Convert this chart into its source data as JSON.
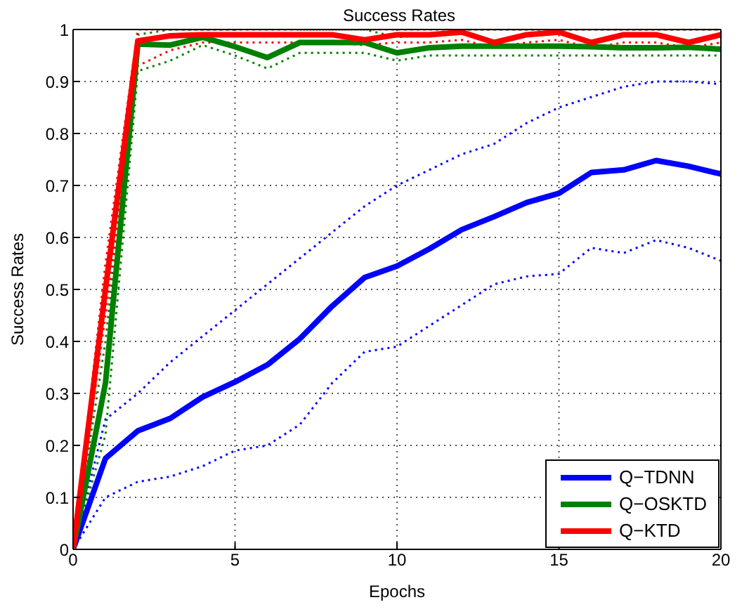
{
  "chart_data": {
    "type": "line",
    "title": "Success Rates",
    "xlabel": "Epochs",
    "ylabel": "Success Rates",
    "x": [
      0,
      1,
      2,
      3,
      4,
      5,
      6,
      7,
      8,
      9,
      10,
      11,
      12,
      13,
      14,
      15,
      16,
      17,
      18,
      19,
      20
    ],
    "xlim": [
      0,
      20
    ],
    "xticks": [
      0,
      5,
      10,
      15,
      20
    ],
    "ylim": [
      0,
      1
    ],
    "yticks": [
      0,
      0.1,
      0.2,
      0.3,
      0.4,
      0.5,
      0.6,
      0.7,
      0.8,
      0.9,
      1
    ],
    "grid": true,
    "legend": "bottom right",
    "marker": "none",
    "series": [
      {
        "color": "#0000ff",
        "line_style": "dotted",
        "values": [
          0,
          0.1,
          0.13,
          0.14,
          0.16,
          0.19,
          0.2,
          0.24,
          0.32,
          0.38,
          0.39,
          0.43,
          0.47,
          0.51,
          0.525,
          0.53,
          0.58,
          0.57,
          0.595,
          0.58,
          0.555
        ]
      },
      {
        "color": "#0000ff",
        "line_style": "dotted",
        "values": [
          0,
          0.25,
          0.3,
          0.36,
          0.41,
          0.46,
          0.51,
          0.56,
          0.61,
          0.66,
          0.7,
          0.73,
          0.76,
          0.78,
          0.82,
          0.85,
          0.87,
          0.89,
          0.9,
          0.9,
          0.895
        ]
      },
      {
        "color": "#008000",
        "line_style": "dotted",
        "values": [
          0,
          0.22,
          0.92,
          0.94,
          0.97,
          0.95,
          0.925,
          0.955,
          0.955,
          0.955,
          0.94,
          0.95,
          0.95,
          0.95,
          0.95,
          0.95,
          0.95,
          0.95,
          0.95,
          0.95,
          0.95
        ]
      },
      {
        "color": "#008000",
        "line_style": "dotted",
        "values": [
          0,
          0.4,
          0.99,
          1,
          1,
          1,
          null,
          1,
          1,
          1,
          0.985,
          0.99,
          1,
          1,
          1,
          1,
          1,
          1,
          1,
          1,
          1
        ]
      },
      {
        "color": "#ff0000",
        "line_style": "dotted",
        "values": [
          0,
          0.45,
          0.93,
          0.96,
          0.975,
          0.975,
          0.975,
          0.975,
          0.975,
          0.97,
          0.975,
          0.975,
          0.98,
          0.965,
          0.975,
          0.98,
          0.965,
          0.975,
          0.975,
          0.965,
          0.975
        ]
      },
      {
        "color": "#ff0000",
        "line_style": "dotted",
        "values": [
          0,
          0.55,
          1,
          1,
          1,
          1,
          1,
          1,
          1,
          1,
          1,
          1,
          1,
          1,
          1,
          1,
          1,
          1,
          1,
          1,
          1
        ]
      },
      {
        "name": "Q−TDNN",
        "color": "#0000ff",
        "line_style": "solid",
        "values": [
          0,
          0.175,
          0.228,
          0.252,
          0.293,
          0.322,
          0.355,
          0.405,
          0.468,
          0.523,
          0.545,
          0.578,
          0.615,
          0.64,
          0.667,
          0.685,
          0.725,
          0.73,
          0.748,
          0.737,
          0.722
        ]
      },
      {
        "name": "Q−OSKTD",
        "color": "#008000",
        "line_style": "solid",
        "values": [
          0,
          0.32,
          0.972,
          0.97,
          0.985,
          0.967,
          0.946,
          0.975,
          0.975,
          0.975,
          0.955,
          0.965,
          0.968,
          0.968,
          0.968,
          0.968,
          0.967,
          0.965,
          0.965,
          0.966,
          0.962
        ]
      },
      {
        "name": "Q−KTD",
        "color": "#ff0000",
        "line_style": "solid",
        "values": [
          0,
          0.5,
          0.978,
          0.988,
          0.99,
          0.99,
          0.99,
          0.99,
          0.99,
          0.98,
          0.99,
          0.99,
          0.995,
          0.975,
          0.99,
          0.995,
          0.975,
          0.99,
          0.99,
          0.975,
          0.99
        ]
      }
    ]
  }
}
